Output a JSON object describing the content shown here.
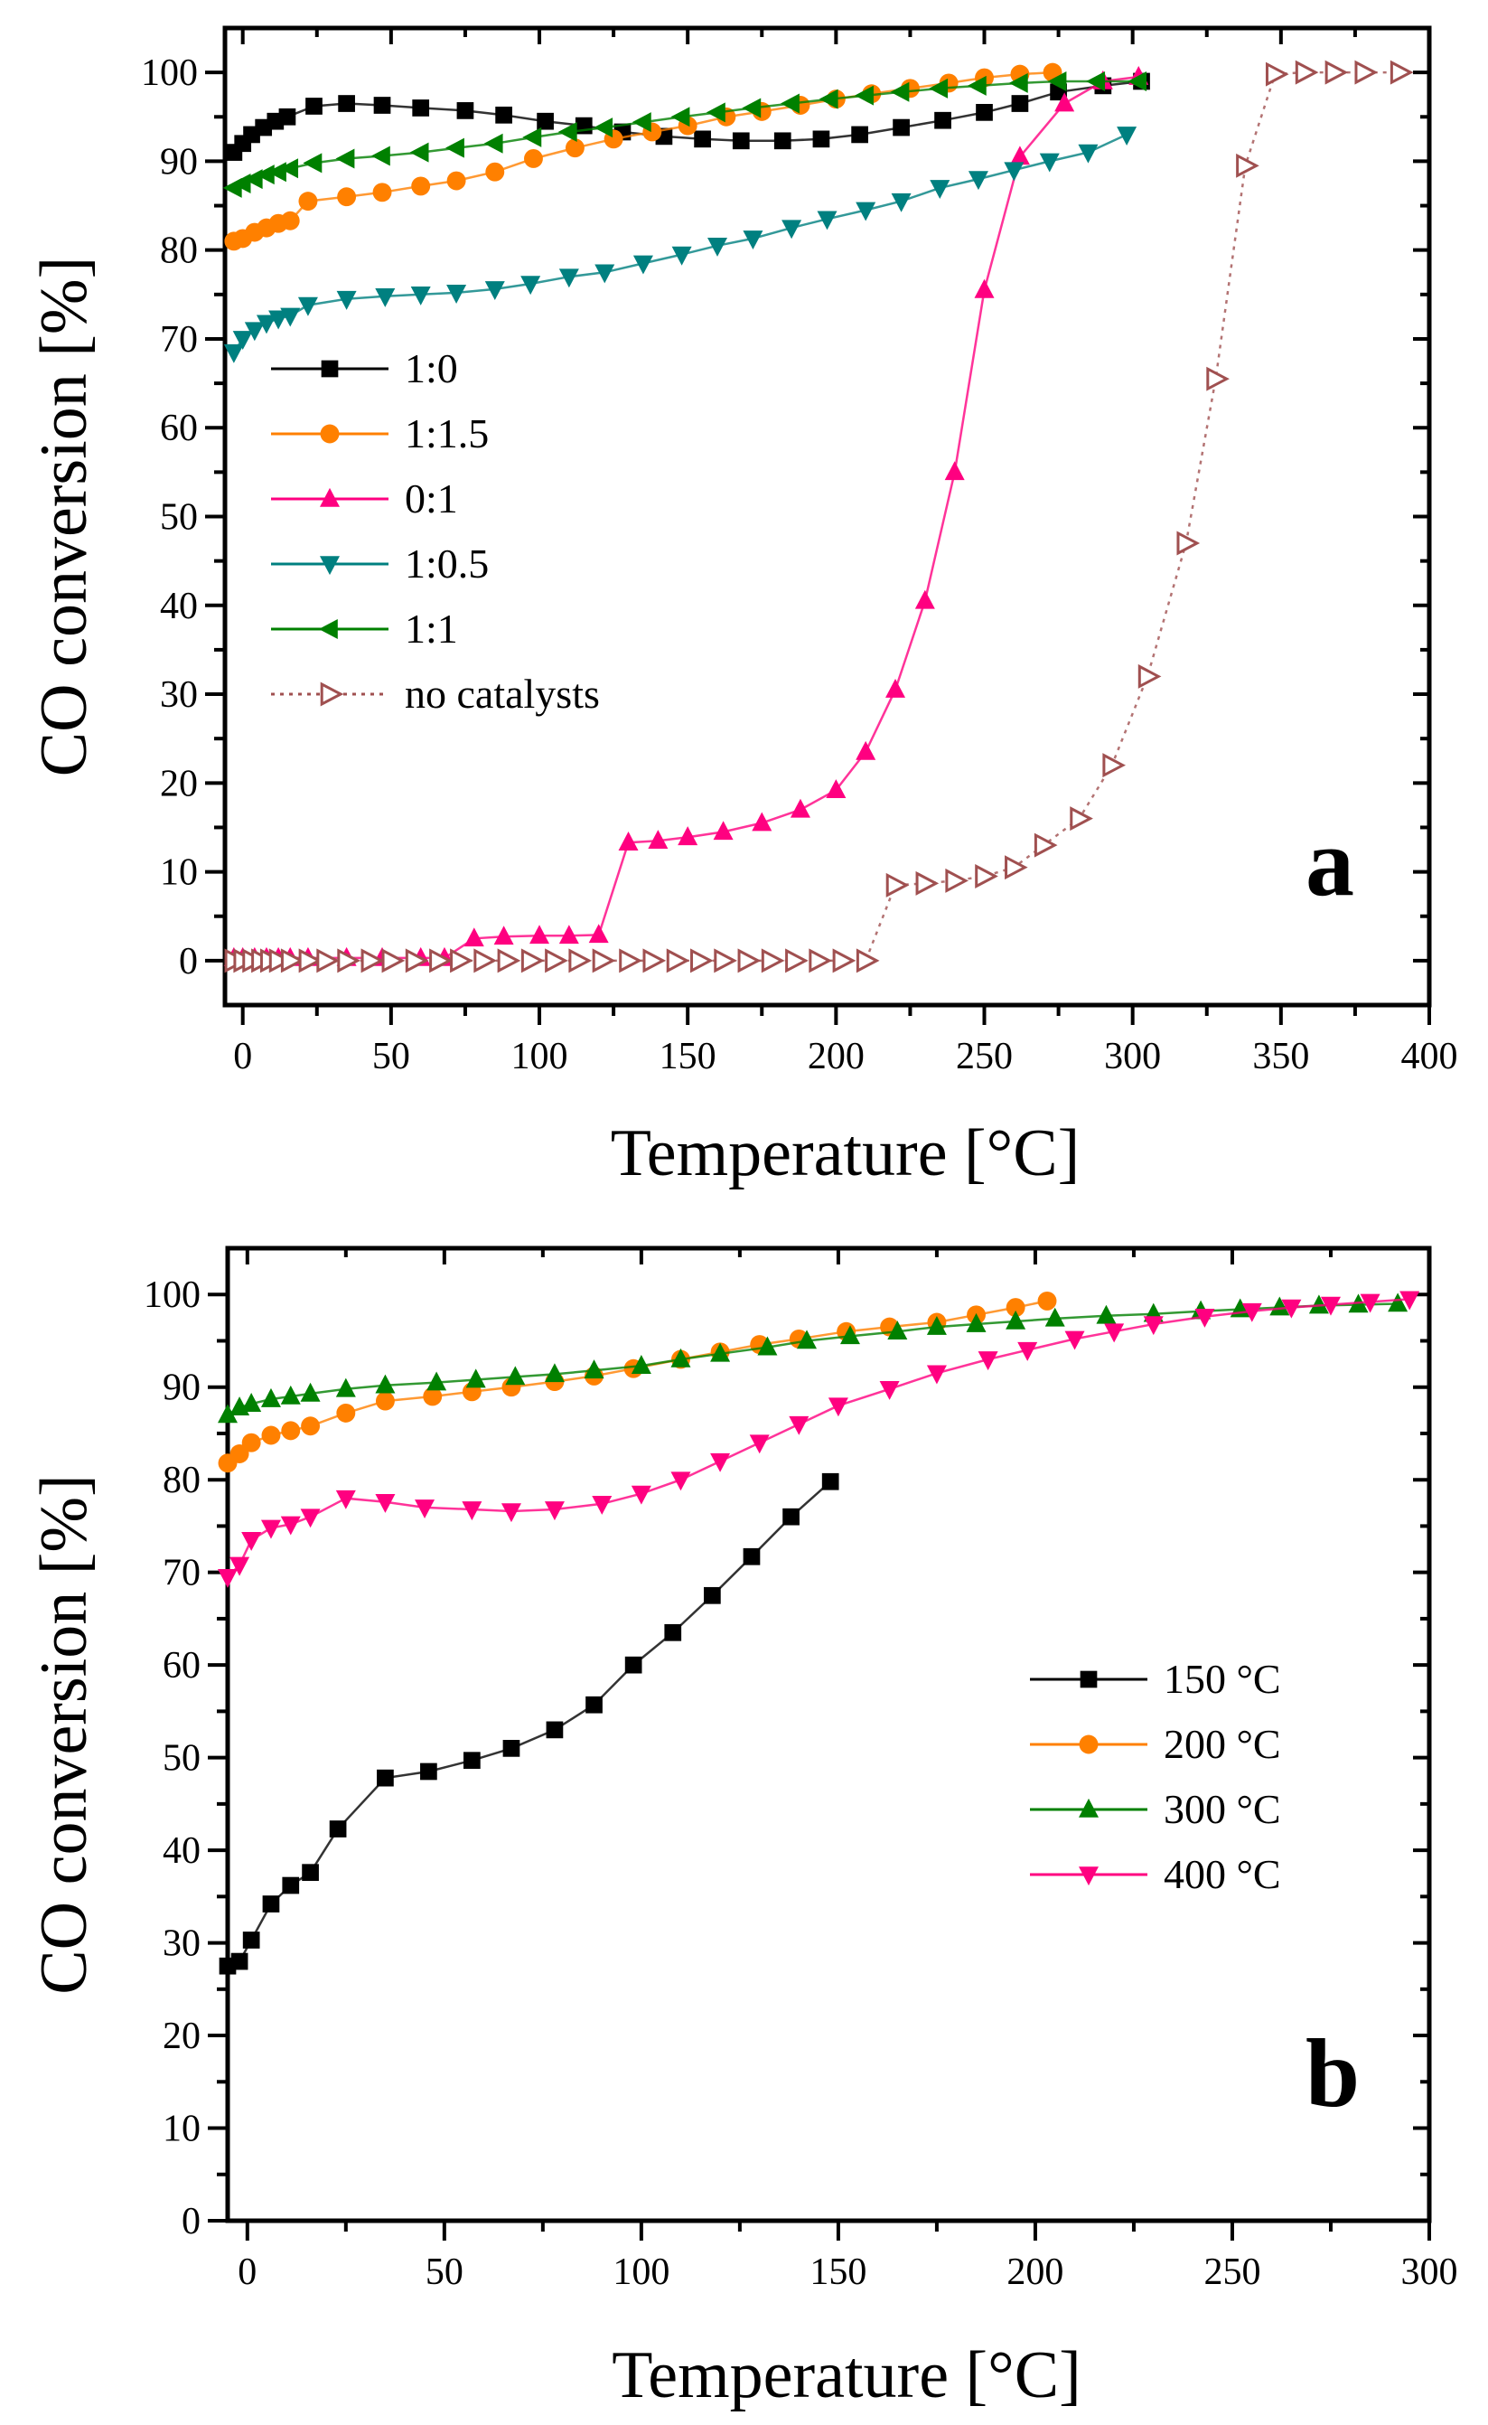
{
  "chart_data": [
    {
      "type": "line",
      "panel_label": "a",
      "xlabel": "Temperature [°C]",
      "ylabel": "CO conversion [%]",
      "xlim": [
        -6,
        400
      ],
      "ylim": [
        -5,
        105
      ],
      "xticks": [
        0,
        50,
        100,
        150,
        200,
        250,
        300,
        350,
        400
      ],
      "yticks": [
        0,
        10,
        20,
        30,
        40,
        50,
        60,
        70,
        80,
        90,
        100
      ],
      "legend_position": "center-left",
      "series": [
        {
          "name": "1:0",
          "marker": "square",
          "color": "#000000",
          "line": "solid",
          "x": [
            -3,
            0,
            3,
            7,
            11,
            15,
            24,
            35,
            47,
            60,
            75,
            88,
            102,
            115,
            128,
            142,
            155,
            168,
            182,
            195,
            208,
            222,
            236,
            250,
            262,
            275,
            290,
            303
          ],
          "y": [
            91,
            92,
            93,
            93.8,
            94.5,
            95,
            96.2,
            96.5,
            96.3,
            96,
            95.7,
            95.2,
            94.5,
            94,
            93.3,
            92.8,
            92.5,
            92.3,
            92.3,
            92.5,
            93,
            93.8,
            94.6,
            95.5,
            96.5,
            97.8,
            98.5,
            99
          ]
        },
        {
          "name": "1:1.5",
          "marker": "circle",
          "color": "#ff8000",
          "line": "solid",
          "x": [
            -3,
            0,
            4,
            8,
            12,
            16,
            22,
            35,
            47,
            60,
            72,
            85,
            98,
            112,
            125,
            138,
            150,
            163,
            175,
            188,
            200,
            212,
            225,
            238,
            250,
            262,
            273
          ],
          "y": [
            81,
            81.3,
            82,
            82.5,
            83,
            83.3,
            85.5,
            86,
            86.5,
            87.2,
            87.8,
            88.8,
            90.3,
            91.5,
            92.5,
            93.3,
            94,
            95,
            95.6,
            96.3,
            97,
            97.6,
            98.2,
            98.8,
            99.4,
            99.8,
            100
          ]
        },
        {
          "name": "0:1",
          "marker": "triangle-up",
          "color": "#ff0080",
          "line": "solid",
          "x": [
            -3,
            0,
            4,
            8,
            12,
            16,
            22,
            35,
            47,
            60,
            68,
            78,
            88,
            100,
            110,
            120,
            130,
            140,
            150,
            162,
            175,
            188,
            200,
            210,
            220,
            230,
            240,
            250,
            262,
            277,
            290,
            302
          ],
          "y": [
            0.3,
            0.3,
            0.3,
            0.3,
            0.3,
            0.3,
            0.3,
            0.3,
            0.3,
            0.3,
            0.3,
            2.5,
            2.7,
            2.8,
            2.8,
            2.9,
            13.3,
            13.5,
            13.9,
            14.5,
            15.5,
            17,
            19.2,
            23.5,
            30.5,
            40.5,
            55,
            75.5,
            90.5,
            96.5,
            99,
            99.5
          ]
        },
        {
          "name": "1:0.5",
          "marker": "triangle-down",
          "color": "#008080",
          "line": "solid",
          "x": [
            -3,
            0,
            4,
            8,
            12,
            16,
            22,
            35,
            48,
            60,
            72,
            85,
            97,
            110,
            122,
            135,
            148,
            160,
            172,
            185,
            197,
            210,
            222,
            235,
            248,
            260,
            272,
            285,
            298
          ],
          "y": [
            68.5,
            70,
            71,
            71.8,
            72.3,
            72.6,
            73.8,
            74.5,
            74.8,
            75,
            75.2,
            75.6,
            76.2,
            77,
            77.5,
            78.5,
            79.5,
            80.5,
            81.3,
            82.5,
            83.5,
            84.5,
            85.5,
            87,
            88,
            89,
            90,
            91,
            93
          ]
        },
        {
          "name": "1:1",
          "marker": "triangle-left",
          "color": "#008000",
          "line": "solid",
          "x": [
            -3,
            0,
            4,
            8,
            12,
            16,
            24,
            35,
            47,
            60,
            72,
            85,
            98,
            110,
            122,
            135,
            148,
            160,
            172,
            185,
            198,
            210,
            222,
            235,
            248,
            262,
            275,
            288,
            302
          ],
          "y": [
            87,
            87.5,
            88,
            88.5,
            88.8,
            89.2,
            89.8,
            90.3,
            90.6,
            91,
            91.5,
            92,
            92.7,
            93.3,
            93.8,
            94.4,
            95,
            95.5,
            96,
            96.5,
            97,
            97.4,
            97.8,
            98.2,
            98.5,
            98.8,
            99,
            99,
            99
          ]
        },
        {
          "name": "no catalysts",
          "marker": "triangle-right-open",
          "color": "#a05050",
          "line": "dotted",
          "x": [
            -3,
            0,
            3,
            6,
            9,
            12,
            16,
            22,
            28,
            35,
            43,
            50,
            58,
            66,
            73,
            81,
            89,
            97,
            105,
            113,
            121,
            130,
            138,
            146,
            154,
            162,
            170,
            178,
            186,
            194,
            202,
            210,
            220,
            230,
            240,
            250,
            260,
            270,
            282,
            293,
            305,
            318,
            328,
            338,
            348,
            358,
            368,
            378,
            390
          ],
          "y": [
            0,
            0,
            0,
            0,
            0,
            0,
            0,
            0,
            0,
            0,
            0,
            0,
            0,
            0,
            0,
            0,
            0,
            0,
            0,
            0,
            0,
            0,
            0,
            0,
            0,
            0,
            0,
            0,
            0,
            0,
            0,
            0,
            8.5,
            8.7,
            9,
            9.5,
            10.5,
            13,
            16,
            22,
            32,
            47,
            65.5,
            89.5,
            99.8,
            100,
            100,
            100,
            100
          ]
        }
      ]
    },
    {
      "type": "line",
      "panel_label": "b",
      "xlabel": "Temperature [°C]",
      "ylabel": "CO conversion [%]",
      "xlim": [
        -5,
        300
      ],
      "ylim": [
        0,
        105
      ],
      "xticks": [
        0,
        50,
        100,
        150,
        200,
        250,
        300
      ],
      "yticks": [
        0,
        10,
        20,
        30,
        40,
        50,
        60,
        70,
        80,
        90,
        100
      ],
      "legend_position": "center-right",
      "series": [
        {
          "name": "150 °C",
          "marker": "square",
          "color": "#000000",
          "x": [
            -5,
            -2,
            1,
            6,
            11,
            16,
            23,
            35,
            46,
            57,
            67,
            78,
            88,
            98,
            108,
            118,
            128,
            138,
            148
          ],
          "y": [
            27.5,
            28,
            30.3,
            34.2,
            36.2,
            37.6,
            42.3,
            47.8,
            48.5,
            49.7,
            51,
            53,
            55.7,
            60,
            63.5,
            67.5,
            71.7,
            76,
            79.8
          ]
        },
        {
          "name": "200 °C",
          "marker": "circle",
          "color": "#ff8000",
          "x": [
            -5,
            -2,
            1,
            6,
            11,
            16,
            25,
            35,
            47,
            57,
            67,
            78,
            88,
            98,
            110,
            120,
            130,
            140,
            152,
            163,
            175,
            185,
            195,
            203
          ],
          "y": [
            81.8,
            82.8,
            84,
            84.8,
            85.3,
            85.8,
            87.2,
            88.5,
            89,
            89.5,
            90,
            90.6,
            91.2,
            92,
            93,
            93.8,
            94.6,
            95.2,
            96,
            96.5,
            97,
            97.8,
            98.6,
            99.3
          ]
        },
        {
          "name": "300 °C",
          "marker": "triangle-up",
          "color": "#008000",
          "x": [
            -5,
            -2,
            1,
            6,
            11,
            16,
            25,
            35,
            48,
            58,
            68,
            78,
            88,
            100,
            110,
            120,
            132,
            142,
            153,
            165,
            175,
            185,
            195,
            205,
            218,
            230,
            242,
            252,
            262,
            272,
            282,
            292
          ],
          "y": [
            87,
            87.8,
            88.2,
            88.7,
            89,
            89.3,
            89.8,
            90.2,
            90.5,
            90.8,
            91.1,
            91.4,
            91.8,
            92.3,
            93,
            93.6,
            94.3,
            95,
            95.5,
            96,
            96.5,
            96.8,
            97.1,
            97.4,
            97.7,
            97.9,
            98.2,
            98.4,
            98.6,
            98.8,
            98.9,
            99
          ]
        },
        {
          "name": "400 °C",
          "marker": "triangle-down",
          "color": "#ff0080",
          "x": [
            -5,
            -2,
            1,
            6,
            11,
            16,
            25,
            35,
            45,
            57,
            67,
            78,
            90,
            100,
            110,
            120,
            130,
            140,
            150,
            163,
            175,
            188,
            198,
            210,
            220,
            230,
            243,
            255,
            265,
            275,
            285,
            295
          ],
          "y": [
            69.5,
            70.8,
            73.5,
            74.8,
            75.2,
            76,
            78,
            77.6,
            77,
            76.8,
            76.6,
            76.8,
            77.4,
            78.5,
            80,
            82,
            84,
            86,
            88,
            89.8,
            91.5,
            93,
            94,
            95.2,
            96,
            96.8,
            97.6,
            98.2,
            98.6,
            98.9,
            99.2,
            99.5
          ]
        }
      ]
    }
  ]
}
